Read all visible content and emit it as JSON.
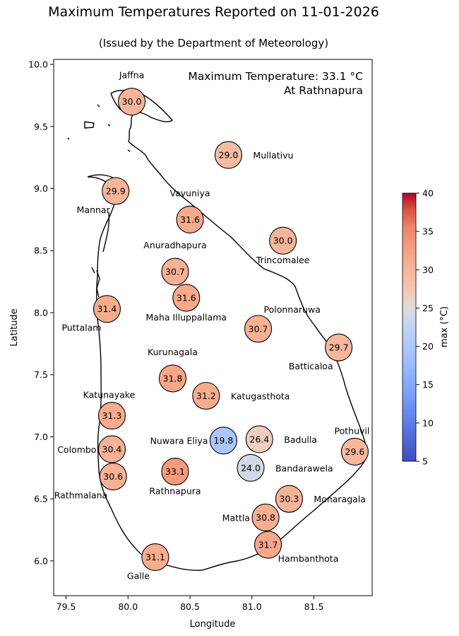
{
  "title": "Maximum Temperatures Reported on 11-01-2026",
  "subtitle": "(Issued by the Department of Meteorology)",
  "annotation": {
    "line1": "Maximum Temperature: 33.1 °C",
    "line2": "At Rathnapura"
  },
  "chart_data": {
    "type": "scatter",
    "xlabel": "Longitude",
    "ylabel": "Latitude",
    "xlim": [
      79.4,
      81.97
    ],
    "ylim": [
      5.72,
      10.04
    ],
    "xticks": [
      "79.5",
      "80.0",
      "80.5",
      "81.0",
      "81.5"
    ],
    "yticks": [
      "6.0",
      "6.5",
      "7.0",
      "7.5",
      "8.0",
      "8.5",
      "9.0",
      "9.5",
      "10.0"
    ],
    "colorbar": {
      "label": "max (°C)",
      "min": 5,
      "max": 40,
      "ticks": [
        "5",
        "10",
        "15",
        "20",
        "25",
        "30",
        "35",
        "40"
      ],
      "colormap": "coolwarm"
    },
    "stations": [
      {
        "name": "Jaffna",
        "lon": 80.03,
        "lat": 9.7,
        "value": "30.0",
        "label_pos": "above"
      },
      {
        "name": "Mullativu",
        "lon": 80.81,
        "lat": 9.27,
        "value": "29.0",
        "label_pos": "right"
      },
      {
        "name": "Mannar",
        "lon": 79.9,
        "lat": 8.98,
        "value": "29.9",
        "label_pos": "below-left"
      },
      {
        "name": "Vavuniya",
        "lon": 80.5,
        "lat": 8.75,
        "value": "31.6",
        "label_pos": "above"
      },
      {
        "name": "Trincomalee",
        "lon": 81.25,
        "lat": 8.58,
        "value": "30.0",
        "label_pos": "below"
      },
      {
        "name": "Anuradhapura",
        "lon": 80.38,
        "lat": 8.33,
        "value": "30.7",
        "label_pos": "above"
      },
      {
        "name": "Maha Illuppallama",
        "lon": 80.47,
        "lat": 8.12,
        "value": "31.6",
        "label_pos": "below"
      },
      {
        "name": "Puttalam",
        "lon": 79.83,
        "lat": 8.03,
        "value": "31.4",
        "label_pos": "below-left"
      },
      {
        "name": "Polonnaruwa",
        "lon": 81.05,
        "lat": 7.87,
        "value": "30.7",
        "label_pos": "above-right"
      },
      {
        "name": "Batticaloa",
        "lon": 81.7,
        "lat": 7.72,
        "value": "29.7",
        "label_pos": "below-left"
      },
      {
        "name": "Kurunagala",
        "lon": 80.36,
        "lat": 7.47,
        "value": "31.8",
        "label_pos": "above"
      },
      {
        "name": "Katugasthota",
        "lon": 80.63,
        "lat": 7.33,
        "value": "31.2",
        "label_pos": "right"
      },
      {
        "name": "Katunayake",
        "lon": 79.87,
        "lat": 7.17,
        "value": "31.3",
        "label_pos": "above-left"
      },
      {
        "name": "Nuwara Eliya",
        "lon": 80.77,
        "lat": 6.97,
        "value": "19.8",
        "label_pos": "left"
      },
      {
        "name": "Badulla",
        "lon": 81.06,
        "lat": 6.98,
        "value": "26.4",
        "label_pos": "right"
      },
      {
        "name": "Pothuvil",
        "lon": 81.83,
        "lat": 6.88,
        "value": "29.6",
        "label_pos": "above-left"
      },
      {
        "name": "Colombo",
        "lon": 79.87,
        "lat": 6.9,
        "value": "30.4",
        "label_pos": "left"
      },
      {
        "name": "Bandarawela",
        "lon": 80.99,
        "lat": 6.75,
        "value": "24.0",
        "label_pos": "right"
      },
      {
        "name": "Rathnapura",
        "lon": 80.38,
        "lat": 6.72,
        "value": "33.1",
        "label_pos": "below"
      },
      {
        "name": "Rathmalana",
        "lon": 79.88,
        "lat": 6.68,
        "value": "30.6",
        "label_pos": "below-left"
      },
      {
        "name": "Monaragala",
        "lon": 81.3,
        "lat": 6.5,
        "value": "30.3",
        "label_pos": "right"
      },
      {
        "name": "Mattla",
        "lon": 81.11,
        "lat": 6.35,
        "value": "30.8",
        "label_pos": "left"
      },
      {
        "name": "Hambanthota",
        "lon": 81.13,
        "lat": 6.13,
        "value": "31.7",
        "label_pos": "below-right"
      },
      {
        "name": "Galle",
        "lon": 80.22,
        "lat": 6.03,
        "value": "31.1",
        "label_pos": "below-left"
      }
    ]
  }
}
